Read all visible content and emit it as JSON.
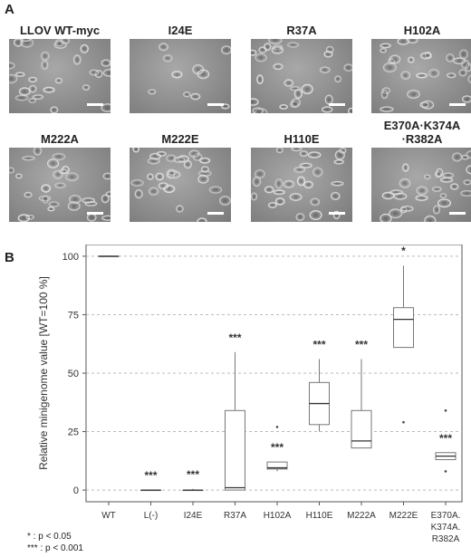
{
  "panel_a_label": "A",
  "panel_b_label": "B",
  "em_panels": [
    {
      "title": "LLOV WT-myc"
    },
    {
      "title": "I24E"
    },
    {
      "title": "R37A"
    },
    {
      "title": "H102A"
    },
    {
      "title": "M222A"
    },
    {
      "title": "M222E"
    },
    {
      "title": "H110E"
    },
    {
      "title": "E370A·K374A\n·R382A"
    }
  ],
  "chart_data": {
    "type": "box",
    "ylabel": "Relative minigenome value [WT=100 %]",
    "ylim": [
      -5,
      105
    ],
    "yticks": [
      0,
      25,
      50,
      75,
      100
    ],
    "grid": "horizontal dashed",
    "categories": [
      "WT",
      "L(-)",
      "I24E",
      "R37A",
      "H102A",
      "H110E",
      "M222A",
      "M222E",
      "E370A.\nK374A.\nR382A"
    ],
    "boxes": [
      {
        "min": 100,
        "q1": 100,
        "median": 100,
        "q3": 100,
        "max": 100,
        "outliers": []
      },
      {
        "min": 0,
        "q1": 0,
        "median": 0,
        "q3": 0,
        "max": 0,
        "outliers": []
      },
      {
        "min": 0,
        "q1": 0,
        "median": 0,
        "q3": 0,
        "max": 0.5,
        "outliers": []
      },
      {
        "min": 0,
        "q1": 0,
        "median": 1,
        "q3": 34,
        "max": 59,
        "outliers": []
      },
      {
        "min": 8,
        "q1": 9,
        "median": 9.5,
        "q3": 12,
        "max": 12,
        "outliers": [
          27
        ]
      },
      {
        "min": 25,
        "q1": 28,
        "median": 37,
        "q3": 46,
        "max": 56,
        "outliers": []
      },
      {
        "min": 18,
        "q1": 18,
        "median": 21,
        "q3": 34,
        "max": 56,
        "outliers": []
      },
      {
        "min": 61,
        "q1": 61,
        "median": 73,
        "q3": 78,
        "max": 96,
        "outliers": [
          29
        ]
      },
      {
        "min": 13,
        "q1": 13,
        "median": 14.5,
        "q3": 16,
        "max": 16,
        "outliers": [
          8,
          34
        ]
      }
    ],
    "significance": [
      "",
      "***",
      "***",
      "***",
      "***",
      "***",
      "***",
      "*",
      "***"
    ],
    "legend": [
      "* : p < 0.05",
      "*** : p < 0.001"
    ]
  }
}
